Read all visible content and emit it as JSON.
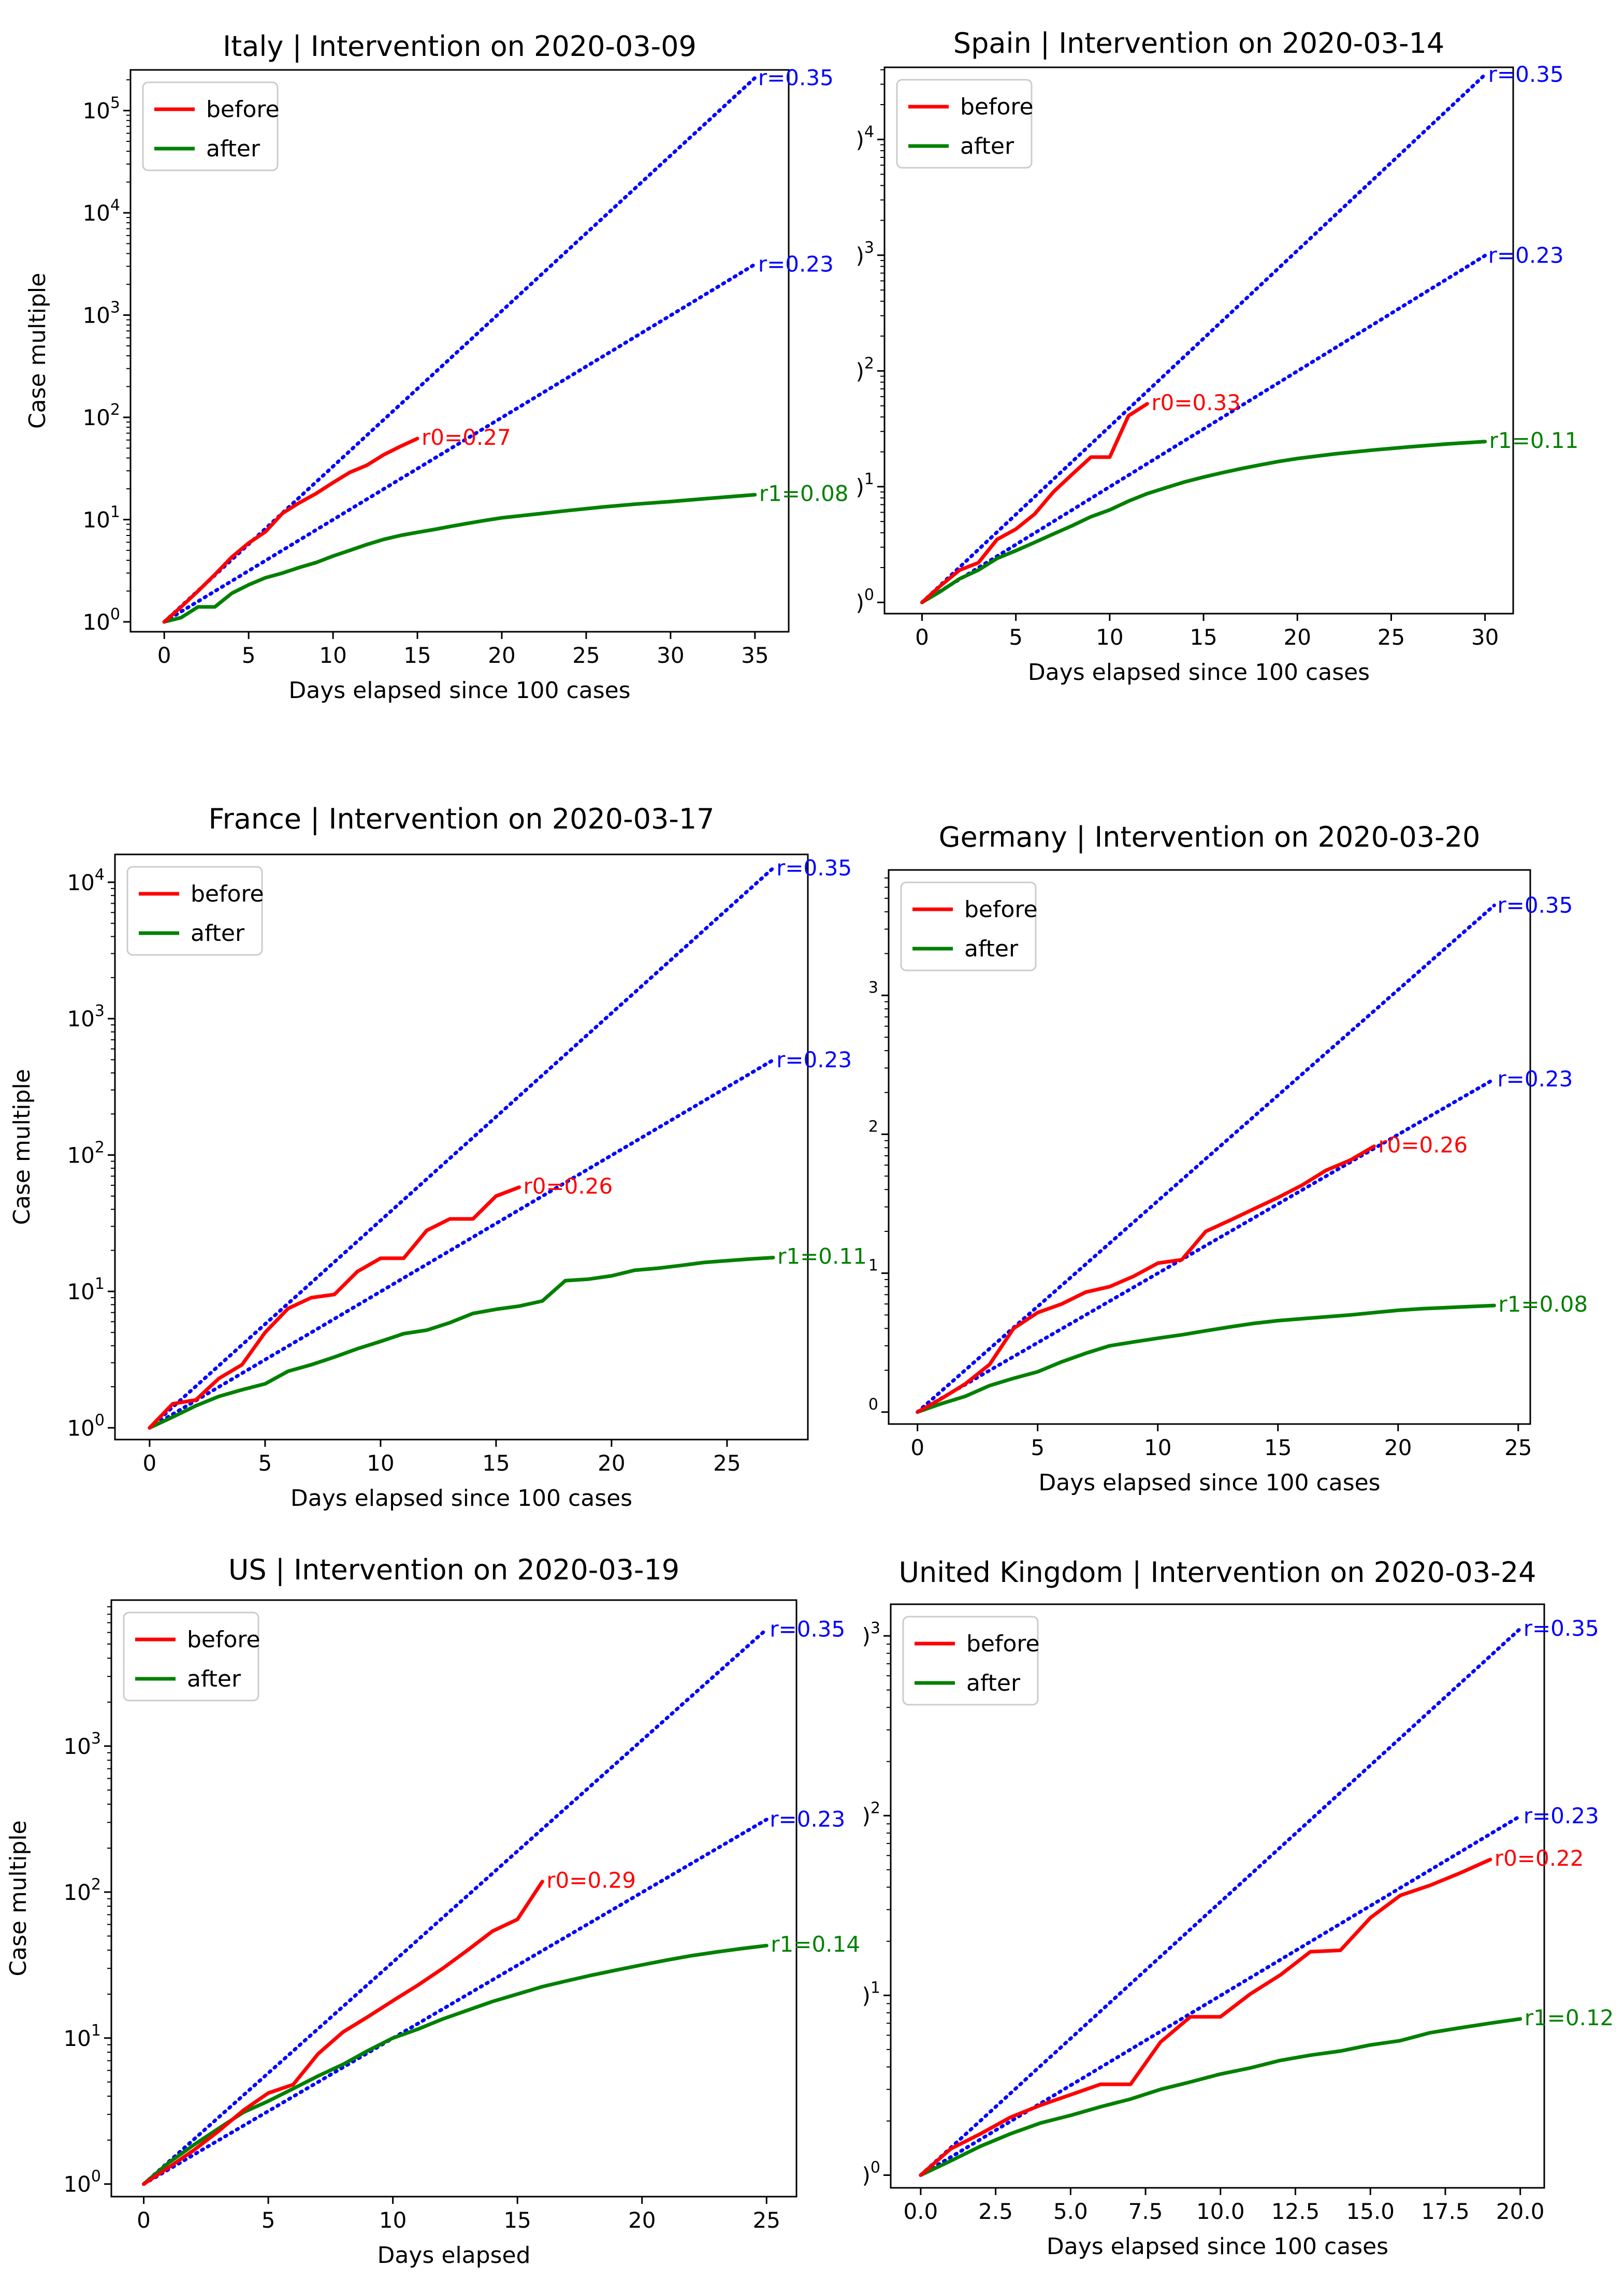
{
  "chart_data": [
    {
      "type": "line",
      "title": "Italy | Intervention on 2020-03-09",
      "xlabel": "Days elapsed since 100 cases",
      "ylabel": "Case multiple",
      "yscale": "log",
      "xlim": [
        -2,
        37
      ],
      "ylim": [
        0.8,
        250000
      ],
      "xticks": [
        0,
        5,
        10,
        15,
        20,
        25,
        30,
        35
      ],
      "yticks": [
        {
          "value": 1,
          "label": "10",
          "exp": "0"
        },
        {
          "value": 10,
          "label": "10",
          "exp": "1"
        },
        {
          "value": 100,
          "label": "10",
          "exp": "2"
        },
        {
          "value": 1000,
          "label": "10",
          "exp": "3"
        },
        {
          "value": 10000,
          "label": "10",
          "exp": "4"
        },
        {
          "value": 100000,
          "label": "10",
          "exp": "5"
        }
      ],
      "legend": [
        "before",
        "after"
      ],
      "reference_lines": [
        {
          "label": "r=0.35",
          "rate": 0.35,
          "x_end": 35
        },
        {
          "label": "r=0.23",
          "rate": 0.23,
          "x_end": 35
        }
      ],
      "series": [
        {
          "name": "before",
          "color": "#ff0000",
          "label": "r0=0.27",
          "x": [
            0,
            1,
            2,
            3,
            4,
            5,
            6,
            7,
            8,
            9,
            10,
            11,
            12,
            13,
            14,
            15
          ],
          "y": [
            1,
            1.4,
            2,
            2.9,
            4.3,
            5.9,
            7.6,
            11.5,
            14.6,
            18,
            23,
            29,
            34,
            43,
            52,
            62
          ]
        },
        {
          "name": "after",
          "color": "#008000",
          "label": "r1=0.08",
          "x": [
            0,
            1,
            2,
            3,
            4,
            5,
            6,
            7,
            8,
            9,
            10,
            11,
            12,
            13,
            14,
            15,
            16,
            17,
            18,
            19,
            20,
            22,
            24,
            26,
            28,
            30,
            32,
            35
          ],
          "y": [
            1,
            1.1,
            1.4,
            1.4,
            1.9,
            2.3,
            2.7,
            3,
            3.4,
            3.8,
            4.4,
            5,
            5.7,
            6.4,
            7,
            7.5,
            8,
            8.6,
            9.2,
            9.8,
            10.4,
            11.3,
            12.3,
            13.3,
            14.2,
            15,
            16,
            17.5
          ]
        }
      ]
    },
    {
      "type": "line",
      "title": "Spain | Intervention on 2020-03-14",
      "xlabel": "Days elapsed since 100 cases",
      "ylabel": "",
      "yscale": "log",
      "xlim": [
        -2,
        31.5
      ],
      "ylim": [
        0.8,
        42000
      ],
      "xticks": [
        0,
        5,
        10,
        15,
        20,
        25,
        30
      ],
      "yticks": [
        {
          "value": 1,
          "label": ")",
          "exp": "0"
        },
        {
          "value": 10,
          "label": ")",
          "exp": "1"
        },
        {
          "value": 100,
          "label": ")",
          "exp": "2"
        },
        {
          "value": 1000,
          "label": ")",
          "exp": "3"
        },
        {
          "value": 10000,
          "label": ")",
          "exp": "4"
        }
      ],
      "legend": [
        "before",
        "after"
      ],
      "reference_lines": [
        {
          "label": "r=0.35",
          "rate": 0.35,
          "x_end": 30
        },
        {
          "label": "r=0.23",
          "rate": 0.23,
          "x_end": 30
        }
      ],
      "series": [
        {
          "name": "before",
          "color": "#ff0000",
          "label": "r0=0.33",
          "x": [
            0,
            1,
            2,
            3,
            4,
            5,
            6,
            7,
            8,
            9,
            10,
            11,
            12
          ],
          "y": [
            1,
            1.4,
            1.9,
            2.2,
            3.5,
            4.3,
            5.8,
            9,
            12.8,
            18,
            18,
            41,
            52
          ]
        },
        {
          "name": "after",
          "color": "#008000",
          "label": "r1=0.11",
          "x": [
            0,
            1,
            2,
            3,
            4,
            5,
            6,
            7,
            8,
            9,
            10,
            11,
            12,
            13,
            14,
            15,
            16,
            17,
            18,
            19,
            20,
            22,
            24,
            26,
            28,
            30
          ],
          "y": [
            1,
            1.25,
            1.6,
            1.9,
            2.4,
            2.8,
            3.3,
            3.9,
            4.6,
            5.5,
            6.3,
            7.5,
            8.7,
            9.8,
            11,
            12.1,
            13.2,
            14.3,
            15.4,
            16.5,
            17.5,
            19.2,
            20.7,
            22.1,
            23.4,
            24.5
          ]
        }
      ]
    },
    {
      "type": "line",
      "title": "France | Intervention on 2020-03-17",
      "xlabel": "Days elapsed since 100 cases",
      "ylabel": "Case multiple",
      "yscale": "log",
      "xlim": [
        -1.5,
        28.5
      ],
      "ylim": [
        0.82,
        16000
      ],
      "xticks": [
        0,
        5,
        10,
        15,
        20,
        25
      ],
      "yticks": [
        {
          "value": 1,
          "label": "10",
          "exp": "0"
        },
        {
          "value": 10,
          "label": "10",
          "exp": "1"
        },
        {
          "value": 100,
          "label": "10",
          "exp": "2"
        },
        {
          "value": 1000,
          "label": "10",
          "exp": "3"
        },
        {
          "value": 10000,
          "label": "10",
          "exp": "4"
        }
      ],
      "legend": [
        "before",
        "after"
      ],
      "reference_lines": [
        {
          "label": "r=0.35",
          "rate": 0.35,
          "x_end": 27
        },
        {
          "label": "r=0.23",
          "rate": 0.23,
          "x_end": 27
        }
      ],
      "series": [
        {
          "name": "before",
          "color": "#ff0000",
          "label": "r0=0.26",
          "x": [
            0,
            1,
            2,
            3,
            4,
            5,
            6,
            7,
            8,
            9,
            10,
            11,
            12,
            13,
            14,
            15,
            16
          ],
          "y": [
            1,
            1.5,
            1.6,
            2.3,
            2.9,
            5,
            7.5,
            9,
            9.5,
            14,
            17.5,
            17.5,
            28,
            34,
            34,
            50,
            58
          ]
        },
        {
          "name": "after",
          "color": "#008000",
          "label": "r1=0.11",
          "x": [
            0,
            1,
            2,
            3,
            4,
            5,
            6,
            7,
            8,
            9,
            10,
            11,
            12,
            13,
            14,
            15,
            16,
            17,
            18,
            19,
            20,
            21,
            22,
            23,
            24,
            25,
            26,
            27
          ],
          "y": [
            1,
            1.2,
            1.45,
            1.7,
            1.9,
            2.1,
            2.6,
            2.9,
            3.3,
            3.8,
            4.3,
            4.9,
            5.2,
            5.9,
            6.9,
            7.4,
            7.8,
            8.5,
            12,
            12.3,
            13,
            14.3,
            14.8,
            15.5,
            16.3,
            16.8,
            17.3,
            17.7
          ]
        }
      ]
    },
    {
      "type": "line",
      "title": "Germany | Intervention on 2020-03-20",
      "xlabel": "Days elapsed since 100 cases",
      "ylabel": "",
      "yscale": "log",
      "xlim": [
        -1.2,
        25.5
      ],
      "ylim": [
        0.82,
        8000
      ],
      "xticks": [
        0,
        5,
        10,
        15,
        20,
        25
      ],
      "yticks": [
        {
          "value": 1,
          "label": "",
          "exp": "0"
        },
        {
          "value": 10,
          "label": "",
          "exp": "1"
        },
        {
          "value": 100,
          "label": "",
          "exp": "2"
        },
        {
          "value": 1000,
          "label": "",
          "exp": "3"
        }
      ],
      "legend": [
        "before",
        "after"
      ],
      "reference_lines": [
        {
          "label": "r=0.35",
          "rate": 0.35,
          "x_end": 24
        },
        {
          "label": "r=0.23",
          "rate": 0.23,
          "x_end": 24
        }
      ],
      "series": [
        {
          "name": "before",
          "color": "#ff0000",
          "label": "r0=0.26",
          "x": [
            0,
            1,
            2,
            3,
            4,
            5,
            6,
            7,
            8,
            9,
            10,
            11,
            12,
            13,
            14,
            15,
            16,
            17,
            18,
            19
          ],
          "y": [
            1,
            1.25,
            1.6,
            2.2,
            4,
            5.2,
            6,
            7.3,
            8,
            9.5,
            11.8,
            12.5,
            20,
            24,
            29,
            35,
            43,
            55,
            65,
            82
          ]
        },
        {
          "name": "after",
          "color": "#008000",
          "label": "r1=0.08",
          "x": [
            0,
            1,
            2,
            3,
            4,
            5,
            6,
            7,
            8,
            9,
            10,
            11,
            12,
            13,
            14,
            15,
            16,
            17,
            18,
            19,
            20,
            21,
            22,
            23,
            24
          ],
          "y": [
            1,
            1.15,
            1.3,
            1.55,
            1.75,
            1.95,
            2.3,
            2.65,
            3,
            3.2,
            3.4,
            3.6,
            3.85,
            4.1,
            4.35,
            4.55,
            4.7,
            4.85,
            5,
            5.2,
            5.4,
            5.55,
            5.65,
            5.75,
            5.85
          ]
        }
      ]
    },
    {
      "type": "line",
      "title": "US | Intervention on 2020-03-19",
      "xlabel": "Days elapsed",
      "ylabel": "Case multiple",
      "yscale": "log",
      "xlim": [
        -1.3,
        26.2
      ],
      "ylim": [
        0.82,
        10000
      ],
      "xticks": [
        0,
        5,
        10,
        15,
        20,
        25
      ],
      "yticks": [
        {
          "value": 1,
          "label": "10",
          "exp": "0"
        },
        {
          "value": 10,
          "label": "10",
          "exp": "1"
        },
        {
          "value": 100,
          "label": "10",
          "exp": "2"
        },
        {
          "value": 1000,
          "label": "10",
          "exp": "3"
        }
      ],
      "legend": [
        "before",
        "after"
      ],
      "reference_lines": [
        {
          "label": "r=0.35",
          "rate": 0.35,
          "x_end": 25
        },
        {
          "label": "r=0.23",
          "rate": 0.23,
          "x_end": 25
        }
      ],
      "series": [
        {
          "name": "before",
          "color": "#ff0000",
          "label": "r0=0.29",
          "x": [
            0,
            1,
            2,
            3,
            4,
            5,
            6,
            7,
            8,
            9,
            10,
            11,
            12,
            13,
            14,
            15,
            16
          ],
          "y": [
            1,
            1.3,
            1.7,
            2.3,
            3.2,
            4.2,
            4.8,
            7.8,
            11,
            14,
            18,
            23,
            30,
            40,
            54,
            65,
            118
          ]
        },
        {
          "name": "after",
          "color": "#008000",
          "label": "r1=0.14",
          "x": [
            0,
            1,
            2,
            3,
            4,
            5,
            6,
            7,
            8,
            9,
            10,
            11,
            12,
            13,
            14,
            15,
            16,
            17,
            18,
            19,
            20,
            21,
            22,
            23,
            24,
            25
          ],
          "y": [
            1,
            1.4,
            1.85,
            2.4,
            3.1,
            3.7,
            4.5,
            5.5,
            6.6,
            8.2,
            10,
            11.5,
            13.5,
            15.5,
            17.8,
            20,
            22.5,
            24.7,
            27,
            29.3,
            31.7,
            34.2,
            36.7,
            38.9,
            41,
            43
          ]
        }
      ]
    },
    {
      "type": "line",
      "title": "United Kingdom | Intervention on 2020-03-24",
      "xlabel": "Days elapsed since 100 cases",
      "ylabel": "",
      "yscale": "log",
      "xlim": [
        -1,
        20.8
      ],
      "ylim": [
        0.85,
        1500
      ],
      "xticks": [
        0,
        2.5,
        5,
        7.5,
        10,
        12.5,
        15,
        17.5,
        20
      ],
      "xticklabels": [
        "0.0",
        "2.5",
        "5.0",
        "7.5",
        "10.0",
        "12.5",
        "15.0",
        "17.5",
        "20.0"
      ],
      "yticks": [
        {
          "value": 1,
          "label": ")",
          "exp": "0"
        },
        {
          "value": 10,
          "label": ")",
          "exp": "1"
        },
        {
          "value": 100,
          "label": ")",
          "exp": "2"
        },
        {
          "value": 1000,
          "label": ")",
          "exp": "3"
        }
      ],
      "legend": [
        "before",
        "after"
      ],
      "reference_lines": [
        {
          "label": "r=0.35",
          "rate": 0.35,
          "x_end": 20
        },
        {
          "label": "r=0.23",
          "rate": 0.23,
          "x_end": 20
        }
      ],
      "series": [
        {
          "name": "before",
          "color": "#ff0000",
          "label": "r0=0.22",
          "x": [
            0,
            1,
            2,
            3,
            4,
            5,
            6,
            7,
            8,
            9,
            10,
            11,
            12,
            13,
            14,
            15,
            16,
            17,
            18,
            19
          ],
          "y": [
            1,
            1.4,
            1.7,
            2.1,
            2.45,
            2.8,
            3.2,
            3.2,
            5.5,
            7.6,
            7.6,
            10.2,
            13,
            17.5,
            17.8,
            27,
            36,
            41,
            48,
            57
          ]
        },
        {
          "name": "after",
          "color": "#008000",
          "label": "r1=0.12",
          "x": [
            0,
            1,
            2,
            3,
            4,
            5,
            6,
            7,
            8,
            9,
            10,
            11,
            12,
            13,
            14,
            15,
            16,
            17,
            18,
            19,
            20
          ],
          "y": [
            1,
            1.2,
            1.45,
            1.7,
            1.95,
            2.15,
            2.4,
            2.65,
            3,
            3.3,
            3.65,
            3.95,
            4.35,
            4.65,
            4.9,
            5.3,
            5.6,
            6.2,
            6.6,
            7,
            7.4
          ]
        }
      ]
    }
  ]
}
